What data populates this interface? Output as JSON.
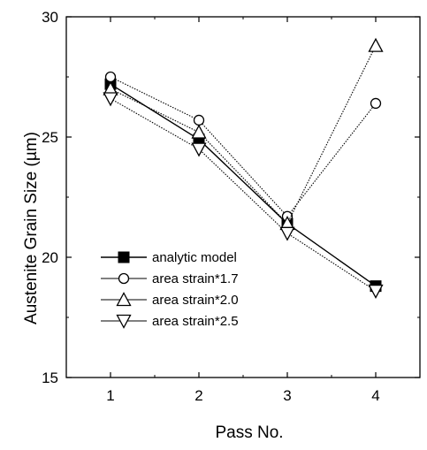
{
  "chart_data": {
    "type": "line",
    "x": [
      1,
      2,
      3,
      4
    ],
    "xlabel": "Pass No.",
    "ylabel": "Austenite Grain Size (µm)",
    "xlim": [
      0.5,
      4.5
    ],
    "ylim": [
      15,
      30
    ],
    "xticks": [
      "1",
      "2",
      "3",
      "4"
    ],
    "yticks": [
      "15",
      "20",
      "25",
      "30"
    ],
    "grid": false,
    "legend_position": "bottom-left",
    "series": [
      {
        "name": "analytic model",
        "marker": "filled-square",
        "line": "solid",
        "values": [
          27.2,
          24.9,
          21.4,
          18.8
        ]
      },
      {
        "name": "area strain*1.7",
        "marker": "open-circle",
        "line": "dotted",
        "values": [
          27.5,
          25.7,
          21.7,
          26.4
        ]
      },
      {
        "name": "area strain*2.0",
        "marker": "open-triangle-up",
        "line": "dotted",
        "values": [
          27.0,
          25.2,
          21.4,
          28.8
        ]
      },
      {
        "name": "area strain*2.5",
        "marker": "open-triangle-down",
        "line": "dotted",
        "values": [
          26.6,
          24.5,
          21.0,
          18.6
        ]
      }
    ]
  }
}
